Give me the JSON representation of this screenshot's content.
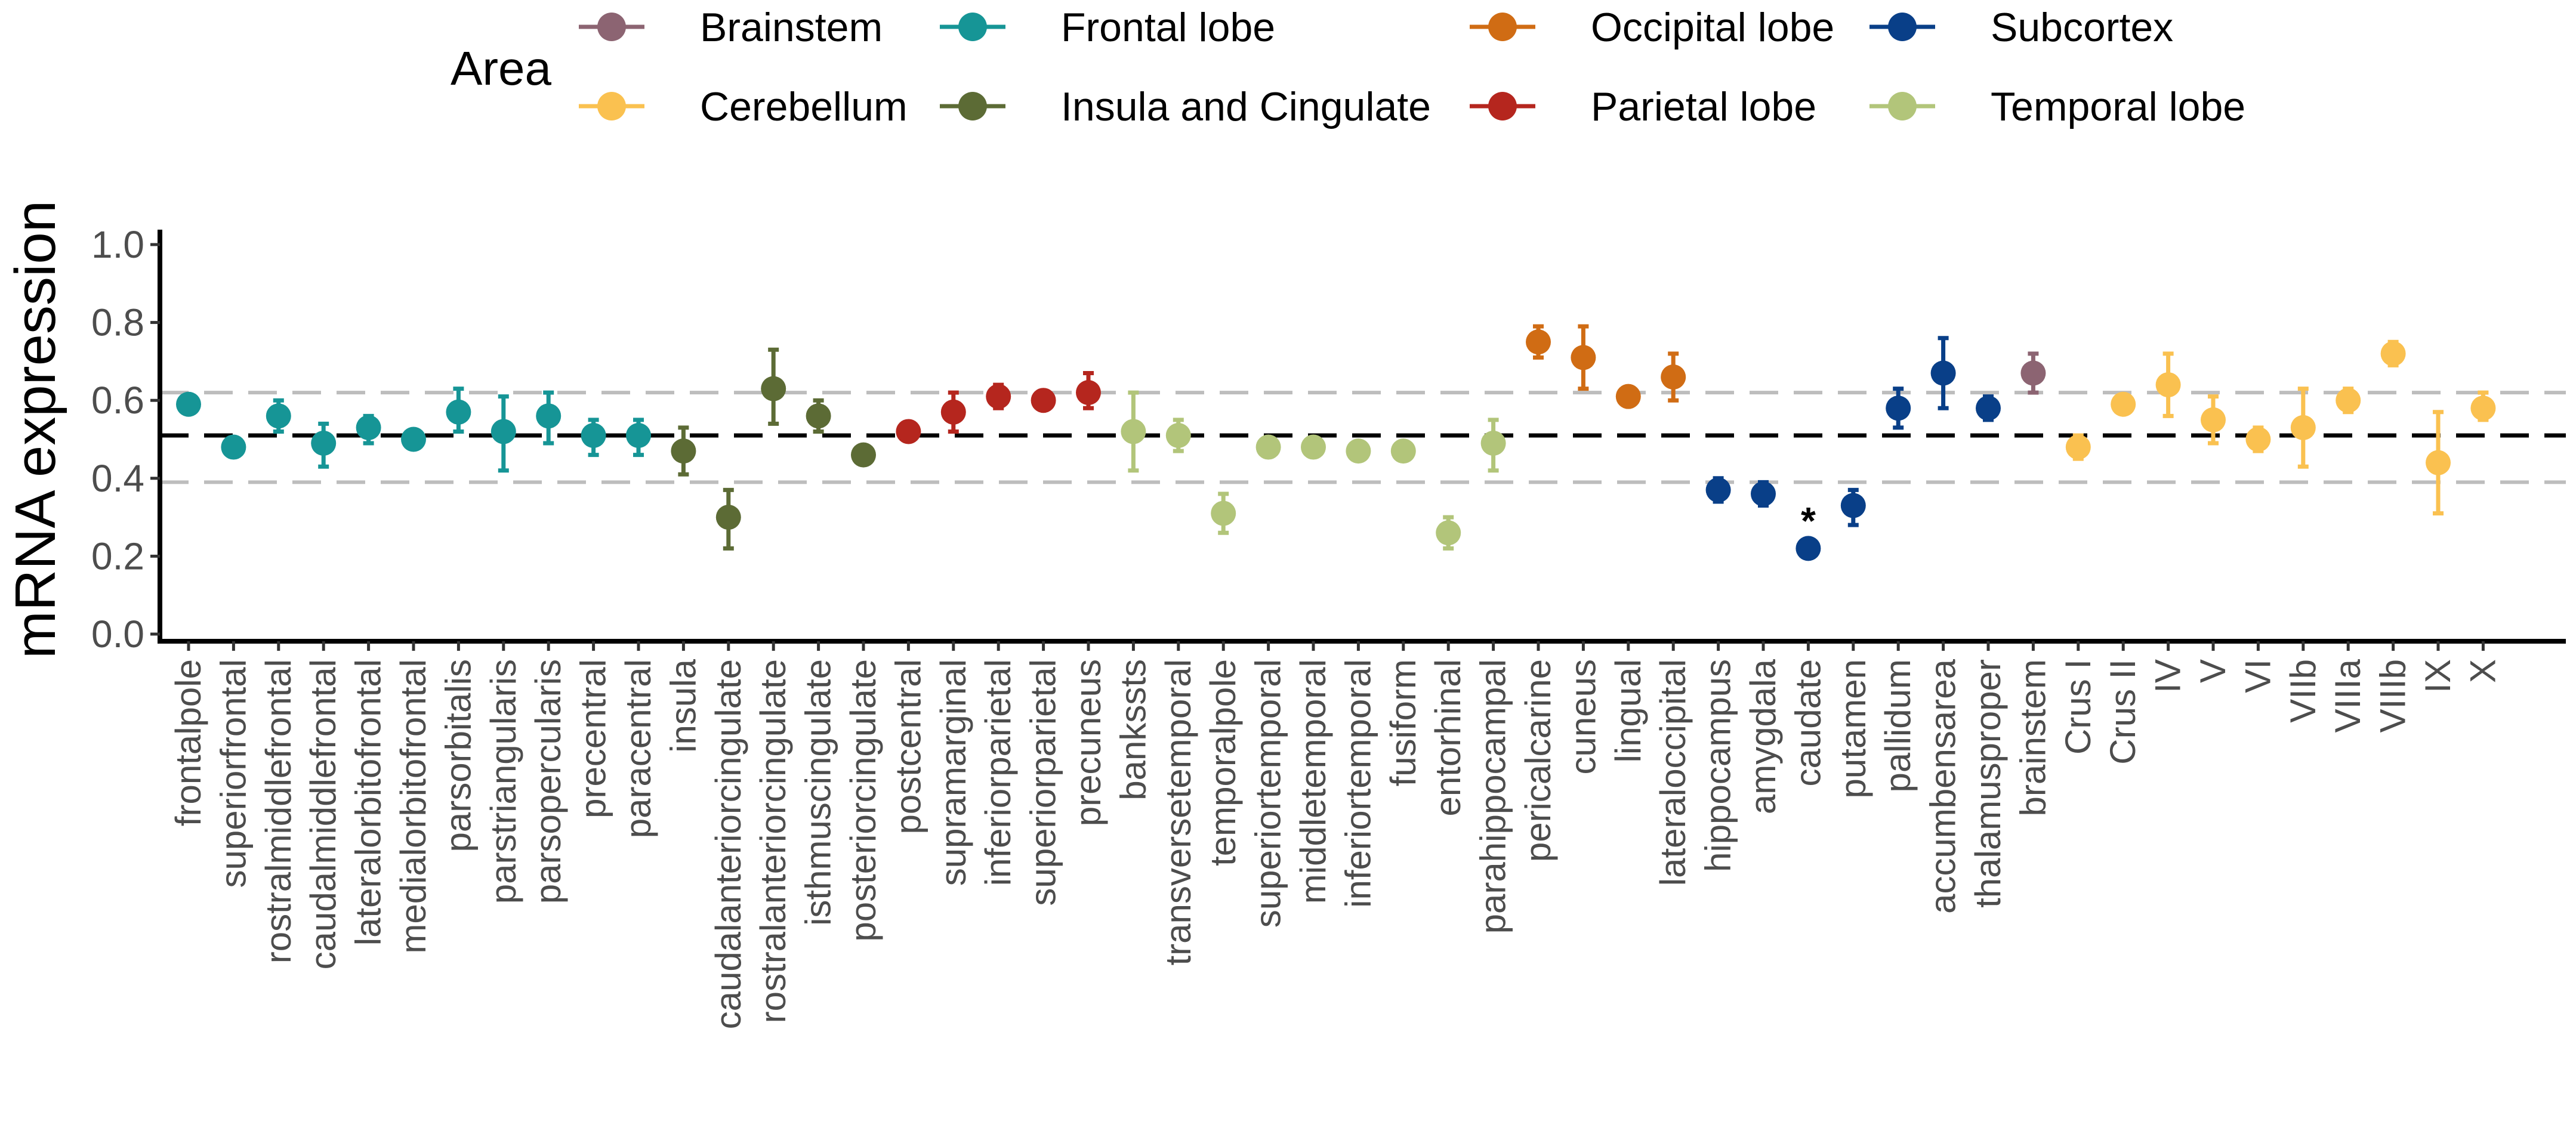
{
  "chart_data": {
    "type": "scatter",
    "ylabel": "mRNA expression",
    "xlabel": "",
    "ylim": [
      -0.05,
      1.05
    ],
    "yticks": [
      0.0,
      0.2,
      0.4,
      0.6,
      0.8,
      1.0
    ],
    "ytick_labels": [
      "0.0",
      "0.2",
      "0.4",
      "0.6",
      "0.8",
      "1.0"
    ],
    "grid": false,
    "legend": {
      "title": "Area",
      "placement": "top",
      "entries": [
        {
          "name": "Brainstem",
          "color": "#8c6472"
        },
        {
          "name": "Cerebellum",
          "color": "#fac150"
        },
        {
          "name": "Frontal lobe",
          "color": "#169596"
        },
        {
          "name": "Insula and Cingulate",
          "color": "#5c6b35"
        },
        {
          "name": "Occipital lobe",
          "color": "#d06c14"
        },
        {
          "name": "Parietal lobe",
          "color": "#b5261e"
        },
        {
          "name": "Subcortex",
          "color": "#093f88"
        },
        {
          "name": "Temporal lobe",
          "color": "#b2c57a"
        }
      ]
    },
    "reference_lines": [
      {
        "y": 0.51,
        "style": "dashed",
        "color": "#000000"
      },
      {
        "y": 0.62,
        "style": "dashed",
        "color": "#bdbdbd"
      },
      {
        "y": 0.39,
        "style": "dashed",
        "color": "#bdbdbd"
      }
    ],
    "points": [
      {
        "label": "frontalpole",
        "area": "Frontal lobe",
        "y": 0.59,
        "lo": 0.57,
        "hi": 0.61
      },
      {
        "label": "superiorfrontal",
        "area": "Frontal lobe",
        "y": 0.48,
        "lo": 0.47,
        "hi": 0.49
      },
      {
        "label": "rostralmiddlefrontal",
        "area": "Frontal lobe",
        "y": 0.56,
        "lo": 0.52,
        "hi": 0.6
      },
      {
        "label": "caudalmiddlefrontal",
        "area": "Frontal lobe",
        "y": 0.49,
        "lo": 0.43,
        "hi": 0.54
      },
      {
        "label": "lateralorbitofrontal",
        "area": "Frontal lobe",
        "y": 0.53,
        "lo": 0.49,
        "hi": 0.56
      },
      {
        "label": "medialorbitofrontal",
        "area": "Frontal lobe",
        "y": 0.5,
        "lo": 0.49,
        "hi": 0.51
      },
      {
        "label": "parsorbitalis",
        "area": "Frontal lobe",
        "y": 0.57,
        "lo": 0.52,
        "hi": 0.63
      },
      {
        "label": "parstriangularis",
        "area": "Frontal lobe",
        "y": 0.52,
        "lo": 0.42,
        "hi": 0.61
      },
      {
        "label": "parsopercularis",
        "area": "Frontal lobe",
        "y": 0.56,
        "lo": 0.49,
        "hi": 0.62
      },
      {
        "label": "precentral",
        "area": "Frontal lobe",
        "y": 0.51,
        "lo": 0.46,
        "hi": 0.55
      },
      {
        "label": "paracentral",
        "area": "Frontal lobe",
        "y": 0.51,
        "lo": 0.46,
        "hi": 0.55
      },
      {
        "label": "insula",
        "area": "Insula and Cingulate",
        "y": 0.47,
        "lo": 0.41,
        "hi": 0.53
      },
      {
        "label": "caudalanteriorcingulate",
        "area": "Insula and Cingulate",
        "y": 0.3,
        "lo": 0.22,
        "hi": 0.37
      },
      {
        "label": "rostralanteriorcingulate",
        "area": "Insula and Cingulate",
        "y": 0.63,
        "lo": 0.54,
        "hi": 0.73
      },
      {
        "label": "isthmuscingulate",
        "area": "Insula and Cingulate",
        "y": 0.56,
        "lo": 0.52,
        "hi": 0.6
      },
      {
        "label": "posteriorcingulate",
        "area": "Insula and Cingulate",
        "y": 0.46,
        "lo": 0.44,
        "hi": 0.48
      },
      {
        "label": "postcentral",
        "area": "Parietal lobe",
        "y": 0.52,
        "lo": 0.51,
        "hi": 0.54
      },
      {
        "label": "supramarginal",
        "area": "Parietal lobe",
        "y": 0.57,
        "lo": 0.52,
        "hi": 0.62
      },
      {
        "label": "inferiorparietal",
        "area": "Parietal lobe",
        "y": 0.61,
        "lo": 0.58,
        "hi": 0.64
      },
      {
        "label": "superiorparietal",
        "area": "Parietal lobe",
        "y": 0.6,
        "lo": 0.58,
        "hi": 0.62
      },
      {
        "label": "precuneus",
        "area": "Parietal lobe",
        "y": 0.62,
        "lo": 0.58,
        "hi": 0.67
      },
      {
        "label": "bankssts",
        "area": "Temporal lobe",
        "y": 0.52,
        "lo": 0.42,
        "hi": 0.62
      },
      {
        "label": "transversetemporal",
        "area": "Temporal lobe",
        "y": 0.51,
        "lo": 0.47,
        "hi": 0.55
      },
      {
        "label": "temporalpole",
        "area": "Temporal lobe",
        "y": 0.31,
        "lo": 0.26,
        "hi": 0.36
      },
      {
        "label": "superiortemporal",
        "area": "Temporal lobe",
        "y": 0.48,
        "lo": 0.47,
        "hi": 0.5
      },
      {
        "label": "middletemporal",
        "area": "Temporal lobe",
        "y": 0.48,
        "lo": 0.47,
        "hi": 0.49
      },
      {
        "label": "inferiortemporal",
        "area": "Temporal lobe",
        "y": 0.47,
        "lo": 0.46,
        "hi": 0.48
      },
      {
        "label": "fusiform",
        "area": "Temporal lobe",
        "y": 0.47,
        "lo": 0.46,
        "hi": 0.48
      },
      {
        "label": "entorhinal",
        "area": "Temporal lobe",
        "y": 0.26,
        "lo": 0.22,
        "hi": 0.3
      },
      {
        "label": "parahippocampal",
        "area": "Temporal lobe",
        "y": 0.49,
        "lo": 0.42,
        "hi": 0.55
      },
      {
        "label": "pericalcarine",
        "area": "Occipital lobe",
        "y": 0.75,
        "lo": 0.71,
        "hi": 0.79
      },
      {
        "label": "cuneus",
        "area": "Occipital lobe",
        "y": 0.71,
        "lo": 0.63,
        "hi": 0.79
      },
      {
        "label": "lingual",
        "area": "Occipital lobe",
        "y": 0.61,
        "lo": 0.6,
        "hi": 0.62
      },
      {
        "label": "lateraloccipital",
        "area": "Occipital lobe",
        "y": 0.66,
        "lo": 0.6,
        "hi": 0.72
      },
      {
        "label": "hippocampus",
        "area": "Subcortex",
        "y": 0.37,
        "lo": 0.34,
        "hi": 0.4
      },
      {
        "label": "amygdala",
        "area": "Subcortex",
        "y": 0.36,
        "lo": 0.33,
        "hi": 0.39
      },
      {
        "label": "caudate",
        "area": "Subcortex",
        "y": 0.22,
        "lo": 0.21,
        "hi": 0.23,
        "annotation": "*"
      },
      {
        "label": "putamen",
        "area": "Subcortex",
        "y": 0.33,
        "lo": 0.28,
        "hi": 0.37
      },
      {
        "label": "pallidum",
        "area": "Subcortex",
        "y": 0.58,
        "lo": 0.53,
        "hi": 0.63
      },
      {
        "label": "accumbensarea",
        "area": "Subcortex",
        "y": 0.67,
        "lo": 0.58,
        "hi": 0.76
      },
      {
        "label": "thalamusproper",
        "area": "Subcortex",
        "y": 0.58,
        "lo": 0.55,
        "hi": 0.61
      },
      {
        "label": "brainstem",
        "area": "Brainstem",
        "y": 0.67,
        "lo": 0.62,
        "hi": 0.72
      },
      {
        "label": "Crus I",
        "area": "Cerebellum",
        "y": 0.48,
        "lo": 0.45,
        "hi": 0.51
      },
      {
        "label": "Crus II",
        "area": "Cerebellum",
        "y": 0.59,
        "lo": 0.58,
        "hi": 0.6
      },
      {
        "label": "IV",
        "area": "Cerebellum",
        "y": 0.64,
        "lo": 0.56,
        "hi": 0.72
      },
      {
        "label": "V",
        "area": "Cerebellum",
        "y": 0.55,
        "lo": 0.49,
        "hi": 0.61
      },
      {
        "label": "VI",
        "area": "Cerebellum",
        "y": 0.5,
        "lo": 0.47,
        "hi": 0.53
      },
      {
        "label": "VIIb",
        "area": "Cerebellum",
        "y": 0.53,
        "lo": 0.43,
        "hi": 0.63
      },
      {
        "label": "VIIIa",
        "area": "Cerebellum",
        "y": 0.6,
        "lo": 0.57,
        "hi": 0.63
      },
      {
        "label": "VIIIb",
        "area": "Cerebellum",
        "y": 0.72,
        "lo": 0.69,
        "hi": 0.75
      },
      {
        "label": "IX",
        "area": "Cerebellum",
        "y": 0.44,
        "lo": 0.31,
        "hi": 0.57
      },
      {
        "label": "X",
        "area": "Cerebellum",
        "y": 0.58,
        "lo": 0.55,
        "hi": 0.62
      }
    ]
  }
}
